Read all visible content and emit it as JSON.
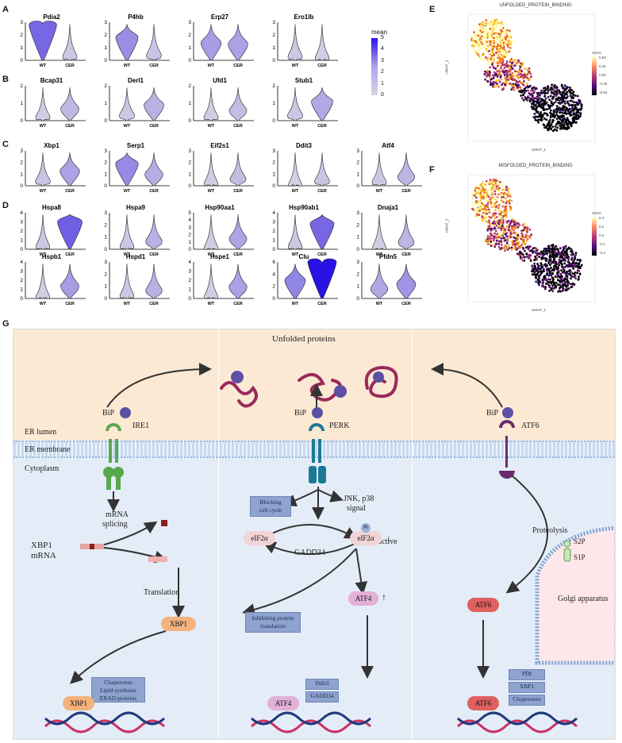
{
  "panels": {
    "A": "A",
    "B": "B",
    "C": "C",
    "D": "D",
    "E": "E",
    "F": "F",
    "G": "G"
  },
  "violin": {
    "xcats": [
      "WT",
      "CER"
    ],
    "rows": [
      {
        "genes": [
          "Pdia2",
          "P4hb",
          "Erp27",
          "Ero1lb"
        ],
        "ticks": [
          [
            "3",
            "2",
            "1",
            "0"
          ],
          [
            "3",
            "2",
            "1",
            "0"
          ],
          [
            "3",
            "2",
            "1",
            "0"
          ],
          [
            "3",
            "2",
            "1",
            "0"
          ]
        ]
      },
      {
        "genes": [
          "Bcap31",
          "Derl1",
          "Ufd1",
          "Stub1"
        ],
        "ticks": [
          [
            "2",
            "1",
            "0"
          ],
          [
            "2",
            "1",
            "0"
          ],
          [
            "2",
            "1",
            "0"
          ],
          [
            "2",
            "1",
            "0"
          ]
        ]
      },
      {
        "genes": [
          "Xbp1",
          "Serp1",
          "Eif2s1",
          "Ddit3",
          "Atf4"
        ],
        "ticks": [
          [
            "3",
            "2",
            "1",
            "0"
          ],
          [
            "3",
            "2",
            "1",
            "0"
          ],
          [
            "3",
            "2",
            "1",
            "0"
          ],
          [
            "3",
            "2",
            "1",
            "0"
          ],
          [
            "3",
            "2",
            "1",
            "0"
          ]
        ]
      },
      {
        "genes": [
          "Hspa8",
          "Hspa9",
          "Hsp90aa1",
          "Hsp90ab1",
          "Dnaja1"
        ],
        "ticks": [
          [
            "4",
            "3",
            "2",
            "1",
            "0"
          ],
          [
            "3",
            "2",
            "1",
            "0"
          ],
          [
            "5",
            "4",
            "3",
            "2",
            "1",
            "0"
          ],
          [
            "4",
            "3",
            "2",
            "1",
            "0"
          ],
          [
            "3",
            "2",
            "1",
            "0"
          ]
        ]
      },
      {
        "genes": [
          "Hspb1",
          "Hspd1",
          "Hspe1",
          "Clu",
          "Pfdn5"
        ],
        "ticks": [
          [
            "4",
            "3",
            "2",
            "1",
            "0"
          ],
          [
            "3",
            "2",
            "1",
            "0"
          ],
          [
            "4",
            "3",
            "2",
            "1",
            "0"
          ],
          [
            "6",
            "4",
            "2",
            "0"
          ],
          [
            "3",
            "2",
            "1",
            "0"
          ]
        ]
      }
    ],
    "legend": {
      "title": "mean",
      "ticks": [
        "5",
        "4",
        "3",
        "2",
        "1",
        "0"
      ],
      "low_color": "#d8d3e3",
      "high_color": "#2a12e6"
    }
  },
  "chart_data": [
    {
      "type": "violin",
      "genes": [
        "Pdia2",
        "P4hb",
        "Erp27",
        "Ero1lb"
      ],
      "categories": [
        "WT",
        "CER"
      ],
      "mean_WT": [
        2.8,
        1.8,
        1.4,
        0.3
      ],
      "mean_CER": [
        0.3,
        0.4,
        1.3,
        0.2
      ],
      "ylim": [
        0,
        3
      ]
    },
    {
      "type": "violin",
      "genes": [
        "Bcap31",
        "Derl1",
        "Ufd1",
        "Stub1"
      ],
      "categories": [
        "WT",
        "CER"
      ],
      "mean_WT": [
        0.2,
        0.3,
        0.2,
        0.3
      ],
      "mean_CER": [
        0.7,
        0.9,
        0.6,
        1.1
      ],
      "ylim": [
        0,
        2
      ]
    },
    {
      "type": "violin",
      "genes": [
        "Xbp1",
        "Serp1",
        "Eif2s1",
        "Ddit3",
        "Atf4"
      ],
      "categories": [
        "WT",
        "CER"
      ],
      "mean_WT": [
        0.4,
        1.9,
        0.2,
        0.1,
        0.3
      ],
      "mean_CER": [
        1.3,
        1.0,
        0.6,
        0.4,
        0.8
      ],
      "ylim": [
        0,
        3
      ]
    },
    {
      "type": "violin",
      "genes": [
        "Hspa8",
        "Hspa9",
        "Hsp90aa1",
        "Hsp90ab1",
        "Dnaja1"
      ],
      "categories": [
        "WT",
        "CER"
      ],
      "mean_WT": [
        0.3,
        0.3,
        0.2,
        0.3,
        0.2
      ],
      "mean_CER": [
        3.0,
        0.9,
        1.2,
        2.8,
        0.8
      ],
      "ylim": [
        0,
        4
      ]
    },
    {
      "type": "violin",
      "genes": [
        "Hspb1",
        "Hspd1",
        "Hspe1",
        "Clu",
        "Pfdn5"
      ],
      "categories": [
        "WT",
        "CER"
      ],
      "mean_WT": [
        0.2,
        0.3,
        0.2,
        2.0,
        1.1
      ],
      "mean_CER": [
        1.4,
        0.9,
        1.3,
        5.0,
        1.6
      ],
      "ylim": [
        0,
        4
      ]
    },
    {
      "type": "scatter",
      "title": "UNFOLDED_PROTEIN_BINDING",
      "xlabel": "UMAP_1",
      "ylabel": "UMAP_2",
      "legend_title": "GSVA",
      "legend_ticks": [
        "0.50",
        "0.25",
        "0.00",
        "-0.25",
        "-0.50"
      ]
    },
    {
      "type": "scatter",
      "title": "MISFOLDED_PROTEIN_BINDING",
      "xlabel": "UMAP_1",
      "ylabel": "UMAP_2",
      "legend_title": "GSVA",
      "legend_ticks": [
        "0.4",
        "0.2",
        "0.0",
        "-0.2",
        "-0.4"
      ]
    }
  ],
  "umap": {
    "E": {
      "title": "UNFOLDED_PROTEIN_BINDING",
      "xlabel": "UMAP_1",
      "ylabel": "UMAP_2",
      "legend_title": "GSVA",
      "legend_ticks": [
        "0.50",
        "0.25",
        "0.00",
        "-0.25",
        "-0.50"
      ],
      "xticks": [
        "-4",
        "0",
        "4"
      ],
      "yticks": [
        "5.0",
        "2.5",
        "0.0",
        "-2.5",
        "-5.0"
      ]
    },
    "F": {
      "title": "MISFOLDED_PROTEIN_BINDING",
      "xlabel": "UMAP_1",
      "ylabel": "UMAP_2",
      "legend_title": "GSVA",
      "legend_ticks": [
        "0.4",
        "0.2",
        "0.0",
        "-0.2",
        "-0.4"
      ],
      "xticks": [
        "-4",
        "0",
        "4"
      ],
      "yticks": [
        "5.0",
        "2.5",
        "0.0",
        "-2.5",
        "-5.0"
      ]
    }
  },
  "diagram": {
    "unfolded": "Unfolded proteins",
    "er_lumen": "ER lumen",
    "er_membrane": "ER membrane",
    "cytoplasm": "Cytoplasm",
    "bip": "BiP",
    "ire1": "IRE1",
    "perk": "PERK",
    "atf6": "ATF6",
    "pi": "Pi",
    "mrna_splicing_1": "mRNA",
    "mrna_splicing_2": "splicing",
    "xbp1_mrna_1": "XBP1",
    "xbp1_mrna_2": "mRNA",
    "translation": "Translation",
    "xbp1": "XBP1",
    "chap_box": [
      "Chaperones",
      "Lipid synthesis",
      "ERAD proteins"
    ],
    "blocking_box": [
      "Blocking",
      "cell cycle"
    ],
    "jnk_1": "JNK, p38",
    "jnk_2": "signal",
    "inactive": "inactive",
    "eif2a": "eIF2α",
    "gadd34": "GADD34",
    "inhib_box": [
      "Inhibiting protein",
      "translation"
    ],
    "atf4": "ATF4",
    "ddit3": "Ddit3",
    "proteolysis": "Proteolysis",
    "s2p": "S2P",
    "s1p": "S1P",
    "golgi": "Golgi apparatus",
    "pdi": "PDI",
    "chaperones": "Chaperones",
    "arrow_up": "↑",
    "arrow_down": "↓"
  }
}
